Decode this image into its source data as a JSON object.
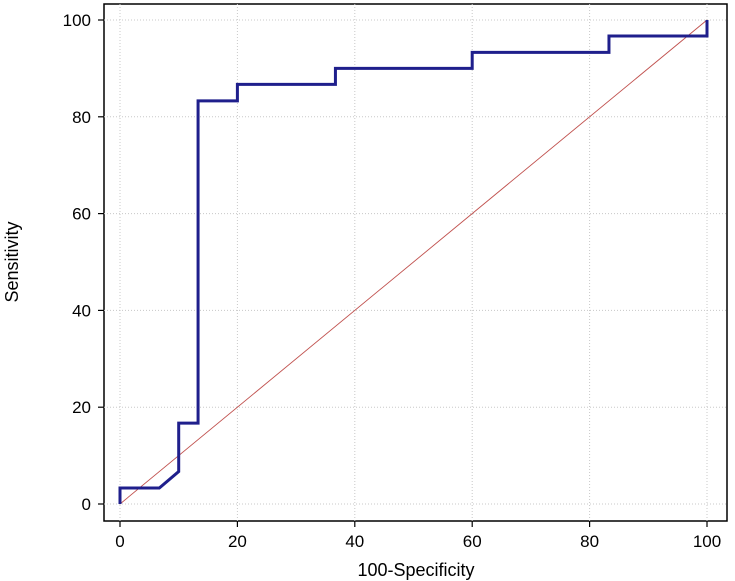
{
  "chart_data": {
    "type": "line",
    "title": "",
    "xlabel": "100-Specificity",
    "ylabel": "Sensitivity",
    "xlim": [
      0,
      100
    ],
    "ylim": [
      0,
      100
    ],
    "x_ticks": [
      0,
      20,
      40,
      60,
      80,
      100
    ],
    "y_ticks": [
      0,
      20,
      40,
      60,
      80,
      100
    ],
    "grid": true,
    "legend": "none",
    "series": [
      {
        "step": true,
        "color": "#1f1f8c",
        "points": [
          [
            0,
            0
          ],
          [
            0,
            3.3
          ],
          [
            6.7,
            3.3
          ],
          [
            6.7,
            3.3
          ],
          [
            10,
            6.7
          ],
          [
            10,
            16.7
          ],
          [
            13.3,
            16.7
          ],
          [
            13.3,
            83.3
          ],
          [
            20,
            83.3
          ],
          [
            20,
            86.7
          ],
          [
            36.7,
            86.7
          ],
          [
            36.7,
            90
          ],
          [
            60,
            90
          ],
          [
            60,
            93.3
          ],
          [
            83.3,
            93.3
          ],
          [
            83.3,
            96.7
          ],
          [
            100,
            96.7
          ],
          [
            100,
            100
          ]
        ]
      },
      {
        "color": "#c0504d",
        "points": [
          [
            0,
            0
          ],
          [
            100,
            100
          ]
        ]
      }
    ]
  }
}
